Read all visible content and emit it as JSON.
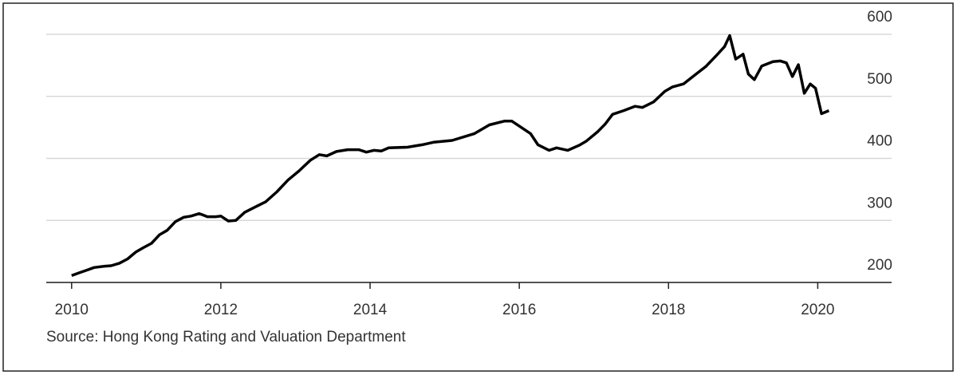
{
  "chart_data": {
    "type": "line",
    "source": "Source: Hong Kong Rating and Valuation Department",
    "x": [
      2010.0,
      2010.11,
      2010.21,
      2010.3,
      2010.43,
      2010.53,
      2010.64,
      2010.75,
      2010.86,
      2010.96,
      2011.07,
      2011.18,
      2011.28,
      2011.39,
      2011.5,
      2011.6,
      2011.71,
      2011.82,
      2011.93,
      2012.0,
      2012.1,
      2012.2,
      2012.32,
      2012.45,
      2012.6,
      2012.75,
      2012.9,
      2013.05,
      2013.2,
      2013.32,
      2013.42,
      2013.55,
      2013.7,
      2013.85,
      2013.95,
      2014.05,
      2014.15,
      2014.25,
      2014.5,
      2014.7,
      2014.85,
      2015.1,
      2015.4,
      2015.6,
      2015.8,
      2015.9,
      2016.0,
      2016.15,
      2016.25,
      2016.4,
      2016.5,
      2016.65,
      2016.8,
      2016.9,
      2017.05,
      2017.15,
      2017.25,
      2017.4,
      2017.55,
      2017.65,
      2017.8,
      2017.95,
      2018.05,
      2018.2,
      2018.35,
      2018.5,
      2018.65,
      2018.75,
      2018.82,
      2018.9,
      2019.0,
      2019.07,
      2019.15,
      2019.25,
      2019.4,
      2019.5,
      2019.58,
      2019.66,
      2019.74,
      2019.82,
      2019.9,
      2019.97,
      2020.05,
      2020.15
    ],
    "values": [
      211,
      216,
      220,
      224,
      226,
      227,
      231,
      238,
      249,
      256,
      263,
      277,
      284,
      298,
      305,
      307,
      311,
      306,
      306,
      307,
      299,
      300,
      313,
      321,
      330,
      346,
      365,
      380,
      397,
      406,
      404,
      411,
      414,
      414,
      410,
      413,
      412,
      417,
      418,
      422,
      426,
      429,
      440,
      454,
      460,
      460,
      452,
      440,
      422,
      413,
      417,
      413,
      421,
      428,
      443,
      455,
      471,
      477,
      484,
      482,
      491,
      508,
      515,
      520,
      534,
      548,
      567,
      580,
      598,
      560,
      568,
      536,
      527,
      549,
      556,
      557,
      554,
      532,
      551,
      505,
      520,
      513,
      472,
      477
    ],
    "color": "#000000",
    "xlim": [
      2009.66,
      2020.99
    ],
    "xticks": [
      2010,
      2012,
      2014,
      2016,
      2018,
      2020
    ],
    "ylim": [
      200,
      600
    ],
    "yticks": [
      200,
      300,
      400,
      500,
      600
    ],
    "grid": true
  }
}
